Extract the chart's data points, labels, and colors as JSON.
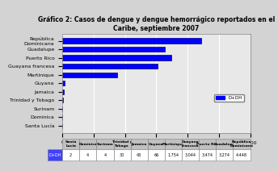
{
  "title": "Gráfico 2: Casos de dengue y dengue hemorrágico reportados en el\nCaribe, septiembre 2007",
  "categories": [
    "Santa Lucía",
    "Dominica",
    "Surinam",
    "Trinidad y Tobago",
    "Jamaica",
    "Guyana",
    "Martinique",
    "Guayana francesa",
    "Puerto Rico",
    "Guadalupe",
    "República\nDominicana"
  ],
  "values": [
    2,
    4,
    4,
    30,
    43,
    66,
    1754,
    3044,
    3474,
    3274,
    4448
  ],
  "bar_color": "#0000ff",
  "legend_label": "D+DH",
  "xlim": [
    0,
    6000
  ],
  "xticks": [
    0,
    1000,
    2000,
    3000,
    4000,
    5000,
    6000
  ],
  "background_color": "#d3d3d3",
  "plot_bg_color": "#e8e8e8",
  "table_row_label": "D+DH",
  "table_values": [
    "2",
    "4",
    "4",
    "30",
    "43",
    "66",
    "1,754",
    "3,044",
    "3,474",
    "3,274",
    "4,448"
  ],
  "table_headers": [
    "Santa\nLucía",
    "Dominica",
    "Surinam",
    "Trinidad y\nTobago",
    "Jamaica",
    "Guyana",
    "Martinique",
    "Guayana\nfrancesa",
    "Puerto Rico",
    "Guadalupe",
    "República\nDominicana"
  ]
}
